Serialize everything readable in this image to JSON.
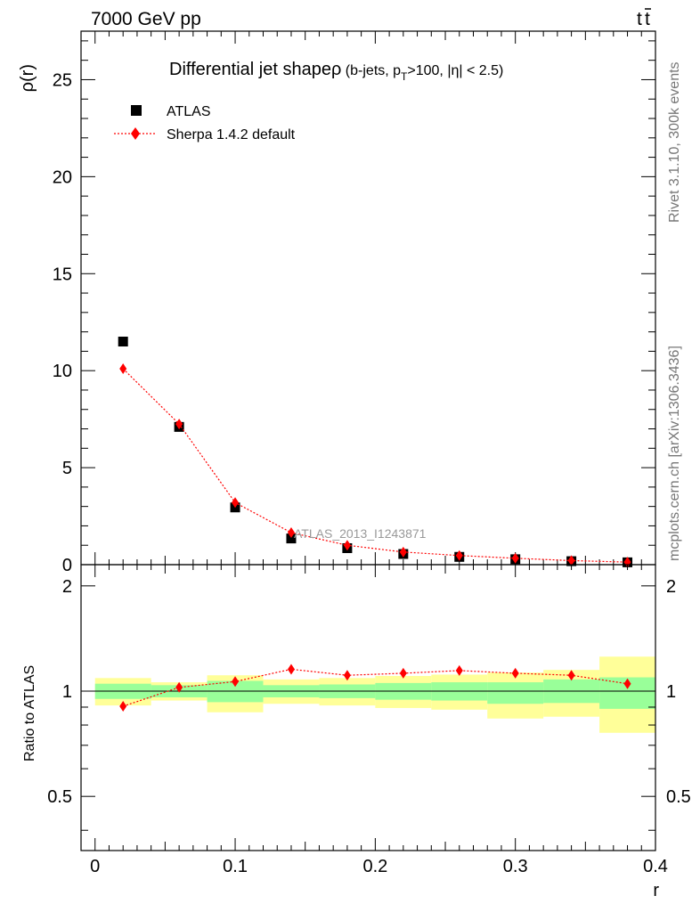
{
  "header": {
    "left": "7000 GeV pp",
    "right_base": "t",
    "right_bar": "t"
  },
  "side_labels": {
    "rivet": "Rivet 3.1.10,  300k events",
    "mcplots": "mcplots.cern.ch [arXiv:1306.3436]"
  },
  "chart_data": [
    {
      "type": "scatter",
      "title_main": "Differential jet shape",
      "title_rho": "ρ",
      "title_paren_1": " (b-jets, p",
      "title_sub": "T",
      "title_paren_2": ">100, |η| < 2.5)",
      "ylabel": "ρ(r)",
      "xlim": [
        -0.01,
        0.4
      ],
      "ylim": [
        0,
        27.5
      ],
      "yticks": [
        0,
        5,
        10,
        15,
        20,
        25
      ],
      "watermark": "ATLAS_2013_I1243871",
      "legend_position": "top-left",
      "series": [
        {
          "name": "ATLAS",
          "marker": "square",
          "color": "#000000",
          "x": [
            0.02,
            0.06,
            0.1,
            0.14,
            0.18,
            0.22,
            0.26,
            0.3,
            0.34,
            0.38
          ],
          "y": [
            11.5,
            7.1,
            2.95,
            1.35,
            0.85,
            0.55,
            0.4,
            0.28,
            0.18,
            0.12
          ]
        },
        {
          "name": "Sherpa 1.4.2 default",
          "marker": "diamond",
          "color": "#ff0000",
          "line": "dotted",
          "x": [
            0.02,
            0.06,
            0.1,
            0.14,
            0.18,
            0.22,
            0.26,
            0.3,
            0.34,
            0.38
          ],
          "y": [
            10.1,
            7.25,
            3.2,
            1.65,
            1.0,
            0.65,
            0.47,
            0.33,
            0.21,
            0.13
          ]
        }
      ]
    },
    {
      "type": "scatter",
      "ylabel": "Ratio to ATLAS",
      "xlabel": "r",
      "xlim": [
        -0.01,
        0.4
      ],
      "ylim": [
        0.35,
        2.3
      ],
      "yticks": [
        0.5,
        1,
        2
      ],
      "xticks": [
        0,
        0.1,
        0.2,
        0.3,
        0.4
      ],
      "reference_line": 1,
      "bands": [
        {
          "x0": 0.0,
          "x1": 0.04,
          "yellow": [
            0.91,
            1.09
          ],
          "green": [
            0.95,
            1.05
          ]
        },
        {
          "x0": 0.04,
          "x1": 0.08,
          "yellow": [
            0.94,
            1.06
          ],
          "green": [
            0.96,
            1.04
          ]
        },
        {
          "x0": 0.08,
          "x1": 0.12,
          "yellow": [
            0.87,
            1.11
          ],
          "green": [
            0.93,
            1.07
          ]
        },
        {
          "x0": 0.12,
          "x1": 0.16,
          "yellow": [
            0.92,
            1.08
          ],
          "green": [
            0.96,
            1.04
          ]
        },
        {
          "x0": 0.16,
          "x1": 0.2,
          "yellow": [
            0.91,
            1.09
          ],
          "green": [
            0.955,
            1.045
          ]
        },
        {
          "x0": 0.2,
          "x1": 0.24,
          "yellow": [
            0.895,
            1.105
          ],
          "green": [
            0.945,
            1.055
          ]
        },
        {
          "x0": 0.24,
          "x1": 0.28,
          "yellow": [
            0.885,
            1.115
          ],
          "green": [
            0.94,
            1.06
          ]
        },
        {
          "x0": 0.28,
          "x1": 0.32,
          "yellow": [
            0.835,
            1.13
          ],
          "green": [
            0.92,
            1.06
          ]
        },
        {
          "x0": 0.32,
          "x1": 0.36,
          "yellow": [
            0.845,
            1.15
          ],
          "green": [
            0.925,
            1.08
          ]
        },
        {
          "x0": 0.36,
          "x1": 0.4,
          "yellow": [
            0.76,
            1.255
          ],
          "green": [
            0.89,
            1.095
          ]
        }
      ],
      "series": [
        {
          "name": "Sherpa 1.4.2 default",
          "marker": "diamond",
          "color": "#ff0000",
          "line": "dotted",
          "x": [
            0.02,
            0.06,
            0.1,
            0.14,
            0.18,
            0.22,
            0.26,
            0.3,
            0.34,
            0.38
          ],
          "y": [
            0.905,
            1.025,
            1.065,
            1.155,
            1.11,
            1.125,
            1.145,
            1.125,
            1.11,
            1.05
          ]
        }
      ]
    }
  ],
  "colors": {
    "band_yellow": "#ffff99",
    "band_green": "#99ff99",
    "axis": "#000000"
  }
}
